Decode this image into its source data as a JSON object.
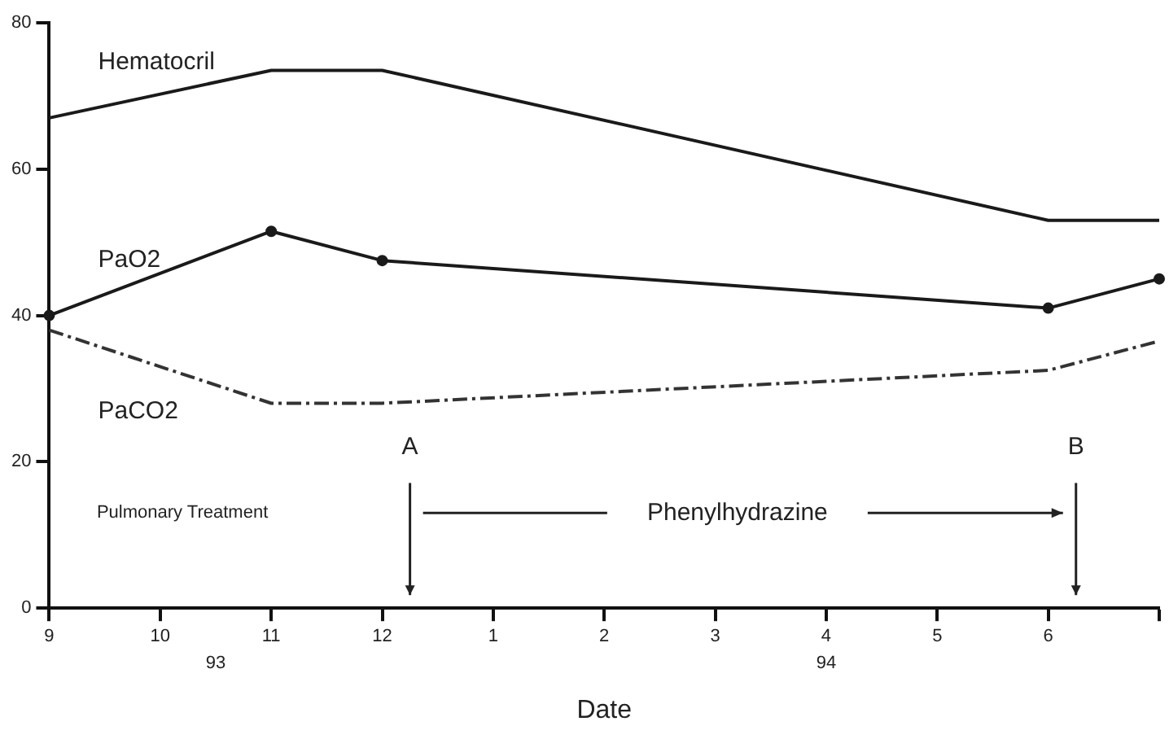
{
  "chart_data": {
    "type": "line",
    "xlabel": "Date",
    "categories": [
      "9",
      "10",
      "11",
      "12",
      "1",
      "2",
      "3",
      "4",
      "5",
      "6",
      null
    ],
    "ylim": [
      0,
      80
    ],
    "yticks": [
      0,
      20,
      40,
      60,
      80
    ],
    "grid": false,
    "legend": false,
    "series": [
      {
        "name": "Hematocril",
        "color": "#1a1a1a",
        "values": [
          67,
          null,
          73.5,
          73.5,
          null,
          null,
          null,
          null,
          null,
          53,
          53
        ],
        "line_style": "solid",
        "marker": "none"
      },
      {
        "name": "PaO2",
        "color": "#1a1a1a",
        "values": [
          40,
          null,
          51.5,
          47.5,
          null,
          null,
          null,
          null,
          null,
          41,
          45
        ],
        "line_style": "solid",
        "marker": "circle"
      },
      {
        "name": "PaCO2",
        "color": "#333333",
        "values": [
          38,
          null,
          28,
          28,
          null,
          null,
          null,
          null,
          null,
          32.5,
          36.5
        ],
        "line_style": "dashed",
        "marker": "none"
      }
    ],
    "annotations": [
      "A",
      "B",
      "Pulmonary Treatment",
      "Phenylhydrazine",
      "93",
      "94"
    ]
  }
}
